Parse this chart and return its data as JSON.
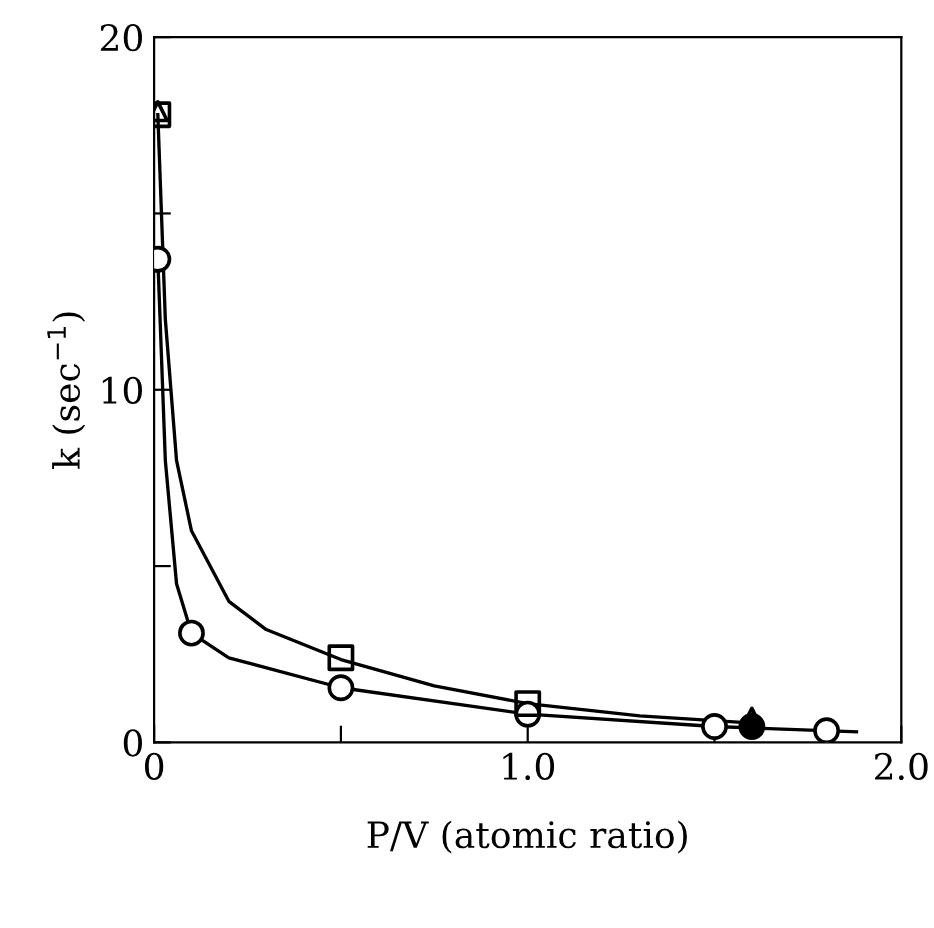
{
  "chart_data": {
    "type": "scatter",
    "xlabel": "P/V (atomic ratio)",
    "ylabel": "k (sec$^{−1}$)",
    "xlim": [
      0,
      2.0
    ],
    "ylim": [
      0,
      20
    ],
    "xticks": [
      0,
      {
        "value": 0.5,
        "label": null
      },
      {
        "value": 1.0,
        "label": "1.0"
      },
      {
        "value": 1.5,
        "label": null
      },
      {
        "value": 2.0,
        "label": "2.0"
      }
    ],
    "yticks": [
      0,
      {
        "value": 5,
        "label": null
      },
      10,
      {
        "value": 15,
        "label": null
      },
      20
    ],
    "grid": false,
    "legend": false,
    "series": [
      {
        "type": "line",
        "color": "#000000",
        "marker": "none",
        "x": [
          0.01,
          0.03,
          0.06,
          0.1,
          0.2,
          0.3,
          0.5,
          0.75,
          1.0,
          1.3,
          1.6
        ],
        "values": [
          17.8,
          12,
          8,
          6,
          4,
          3.2,
          2.35,
          1.6,
          1.1,
          0.75,
          0.55
        ]
      },
      {
        "type": "line",
        "color": "#000000",
        "marker": "none",
        "x": [
          0.01,
          0.03,
          0.06,
          0.1,
          0.2,
          0.5,
          1.0,
          1.5,
          1.88
        ],
        "values": [
          13.7,
          8,
          4.5,
          3.1,
          2.4,
          1.55,
          0.8,
          0.45,
          0.3
        ]
      },
      {
        "color": "#000000",
        "marker": "circle",
        "x": [
          0.01,
          0.1,
          0.5,
          1.0,
          1.5,
          1.8
        ],
        "values": [
          13.7,
          3.1,
          1.55,
          0.8,
          0.45,
          0.33
        ]
      },
      {
        "color": "#000000",
        "marker": "square",
        "x": [
          0.01,
          0.5,
          1.0
        ],
        "values": [
          17.8,
          2.4,
          1.1
        ]
      },
      {
        "color": "#000000",
        "marker": "triangle",
        "x": [
          0.01,
          1.6
        ],
        "values": [
          17.9,
          0.7
        ]
      },
      {
        "color": "#000000",
        "marker": "filled_circle",
        "x": [
          1.6
        ],
        "values": [
          0.45
        ]
      }
    ]
  }
}
